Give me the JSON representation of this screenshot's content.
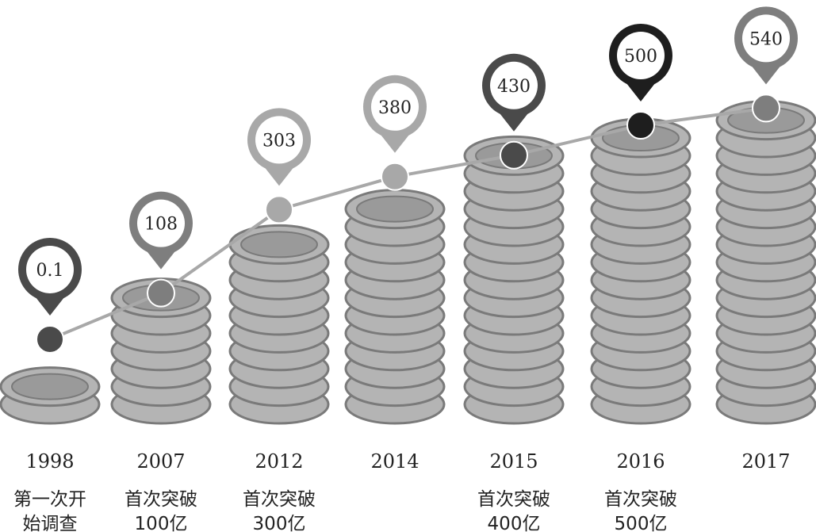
{
  "chart_data": {
    "type": "bar",
    "categories": [
      "1998",
      "2007",
      "2012",
      "2014",
      "2015",
      "2016",
      "2017"
    ],
    "values": [
      0.1,
      108,
      303,
      380,
      430,
      500,
      540
    ],
    "value_labels": [
      "0.1",
      "108",
      "303",
      "380",
      "430",
      "500",
      "540"
    ],
    "annotations": [
      [
        "第一次开",
        "始调查"
      ],
      [
        "首次突破",
        "100亿"
      ],
      [
        "首次突破",
        "300亿"
      ],
      [],
      [
        "首次突破",
        "400亿"
      ],
      [
        "首次突破",
        "500亿"
      ],
      []
    ],
    "coin_layers": [
      1,
      6,
      9,
      11,
      14,
      15,
      16
    ],
    "colors": {
      "coin_fill": "#b4b4b4",
      "coin_edge": "#7a7a7a",
      "coin_top_inner": "#9a9a9a",
      "line": "#a8a8a8",
      "marker_dark": "#4a4a4a",
      "marker_mid": "#7e7e7e",
      "marker_light": "#a8a8a8",
      "marker_black": "#1e1e1e"
    },
    "marker_tones": [
      "dark",
      "mid",
      "light",
      "light",
      "dark",
      "black",
      "mid"
    ]
  }
}
